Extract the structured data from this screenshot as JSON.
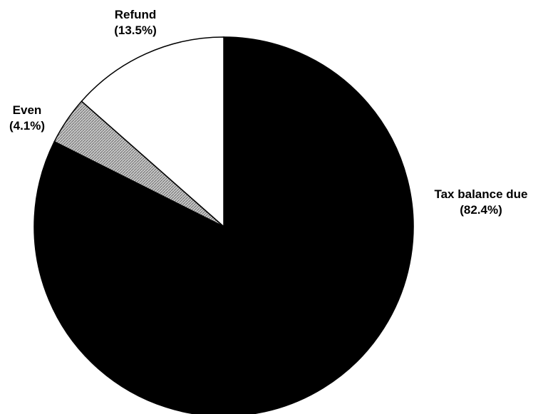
{
  "chart_data": {
    "type": "pie",
    "title": "",
    "start_angle_deg": 0,
    "direction": "clockwise",
    "slices": [
      {
        "label": "Tax balance due",
        "value": 82.4,
        "value_label": "(82.4%)",
        "color": "#000000",
        "fill": "solid"
      },
      {
        "label": "Even",
        "value": 4.1,
        "value_label": "(4.1%)",
        "color": "#a9a9a9",
        "fill": "hatched"
      },
      {
        "label": "Refund",
        "value": 13.5,
        "value_label": "(13.5%)",
        "color": "#ffffff",
        "fill": "solid"
      }
    ]
  }
}
